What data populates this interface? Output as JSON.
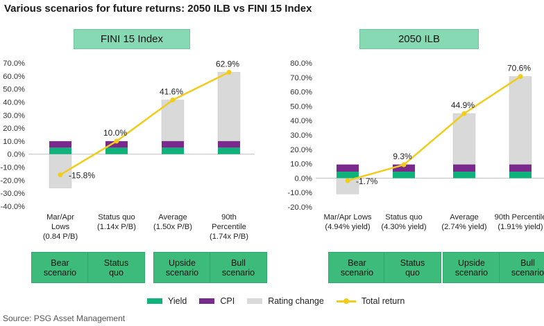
{
  "title": "Various scenarios for future returns: 2050 ILB vs FINI 15 Index",
  "colors": {
    "yield": "#0db37a",
    "cpi": "#7a2a8c",
    "rating": "#d9d9d9",
    "total": "#f1cc1a",
    "header": "#86d9b2",
    "scenario": "#3dbb7b"
  },
  "legend": {
    "yield": "Yield",
    "cpi": "CPI",
    "rating": "Rating change",
    "total": "Total return"
  },
  "source": "Source: PSG Asset Management",
  "chart_data": [
    {
      "type": "bar",
      "title": "FINI 15 Index",
      "categories": [
        "Mar/Apr Lows (0.84 P/B)",
        "Status quo (1.14x P/B)",
        "Average (1.50x P/B)",
        "90th Percentile (1.74x P/B)"
      ],
      "category_lines": [
        [
          "Mar/Apr",
          "Lows",
          "(0.84 P/B)"
        ],
        [
          "Status quo",
          "(1.14x P/B)"
        ],
        [
          "Average",
          "(1.50x P/B)"
        ],
        [
          "90th",
          "Percentile",
          "(1.74x P/B)"
        ]
      ],
      "scenarios": [
        [
          "Bear",
          "scenario"
        ],
        [
          "Status",
          "quo"
        ],
        [
          "Upside",
          "scenario"
        ],
        [
          "Bull",
          "scenario"
        ]
      ],
      "ylim": [
        -40,
        70
      ],
      "ytick_step": 10,
      "yticks": [
        "70.0%",
        "60.0%",
        "50.0%",
        "40.0%",
        "30.0%",
        "20.0%",
        "10.0%",
        "0.0%",
        "-10.0%",
        "-20.0%",
        "-30.0%",
        "-40.0%"
      ],
      "series": [
        {
          "name": "Yield",
          "values": [
            5,
            5,
            5,
            5
          ]
        },
        {
          "name": "CPI",
          "values": [
            5,
            5,
            5,
            5
          ]
        },
        {
          "name": "Rating change",
          "values": [
            -26,
            0,
            31.6,
            52.9
          ]
        },
        {
          "name": "Total return",
          "values": [
            -15.8,
            10.0,
            41.6,
            62.9
          ]
        }
      ],
      "data_labels": [
        "-15.8%",
        "10.0%",
        "41.6%",
        "62.9%"
      ]
    },
    {
      "type": "bar",
      "title": "2050 ILB",
      "categories": [
        "Mar/Apr Lows (4.94% yield)",
        "Status quo (4.30% yield)",
        "Average (2.74% yield)",
        "90th Percentile (1.91% yield)"
      ],
      "category_lines": [
        [
          "Mar/Apr Lows",
          "(4.94% yield)"
        ],
        [
          "Status quo",
          "(4.30% yield)"
        ],
        [
          "Average",
          "(2.74% yield)"
        ],
        [
          "90th Percentile",
          "(1.91% yield)"
        ]
      ],
      "scenarios": [
        [
          "Bear",
          "scenario"
        ],
        [
          "Status",
          "quo"
        ],
        [
          "Upside",
          "scenario"
        ],
        [
          "Bull",
          "scenario"
        ]
      ],
      "ylim": [
        -20,
        80
      ],
      "ytick_step": 10,
      "yticks": [
        "80.0%",
        "70.0%",
        "60.0%",
        "50.0%",
        "40.0%",
        "30.0%",
        "20.0%",
        "10.0%",
        "0.0%",
        "-10.0%",
        "-20.0%"
      ],
      "series": [
        {
          "name": "Yield",
          "values": [
            4.5,
            4.5,
            4.5,
            4.5
          ]
        },
        {
          "name": "CPI",
          "values": [
            5,
            5,
            5,
            5
          ]
        },
        {
          "name": "Rating change",
          "values": [
            -11,
            0,
            35.4,
            61.1
          ]
        },
        {
          "name": "Total return",
          "values": [
            -1.7,
            9.3,
            44.9,
            70.6
          ]
        }
      ],
      "data_labels": [
        "-1.7%",
        "9.3%",
        "44.9%",
        "70.6%"
      ]
    }
  ]
}
